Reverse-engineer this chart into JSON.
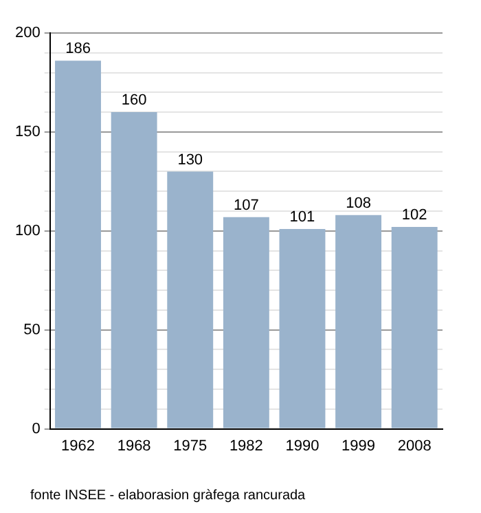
{
  "chart_data": {
    "type": "bar",
    "categories": [
      "1962",
      "1968",
      "1975",
      "1982",
      "1990",
      "1999",
      "2008"
    ],
    "values": [
      186,
      160,
      130,
      107,
      101,
      108,
      102
    ],
    "color": "#9ab3cc",
    "data_labels": true,
    "ylim": [
      0,
      200
    ],
    "yticks": [
      0,
      {
        "value": 10,
        "label": null
      },
      {
        "value": 20,
        "label": null
      },
      {
        "value": 30,
        "label": null
      },
      {
        "value": 40,
        "label": null
      },
      50,
      {
        "value": 60,
        "label": null
      },
      {
        "value": 70,
        "label": null
      },
      {
        "value": 80,
        "label": null
      },
      {
        "value": 90,
        "label": null
      },
      100,
      {
        "value": 110,
        "label": null
      },
      {
        "value": 120,
        "label": null
      },
      {
        "value": 130,
        "label": null
      },
      {
        "value": 140,
        "label": null
      },
      150,
      {
        "value": 160,
        "label": null
      },
      {
        "value": 170,
        "label": null
      },
      {
        "value": 180,
        "label": null
      },
      {
        "value": 190,
        "label": null
      },
      200
    ],
    "grid": "y",
    "annotations": [
      "fonte INSEE - elaborasion gràfega rancurada"
    ]
  }
}
